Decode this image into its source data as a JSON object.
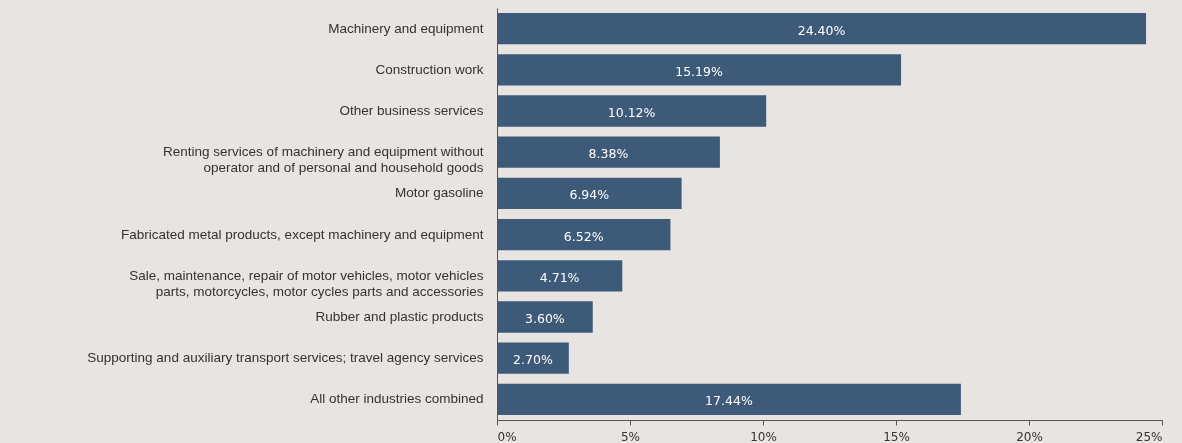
{
  "chart_data": {
    "type": "bar",
    "orientation": "horizontal",
    "categories": [
      "Machinery and equipment",
      "Construction work",
      "Other business services",
      "Renting services of machinery and equipment without\noperator and of personal and household goods",
      "Motor gasoline",
      "Fabricated metal products, except machinery and equipment",
      "Sale, maintenance, repair of motor vehicles, motor vehicles\nparts, motorcycles, motor cycles parts and accessories",
      "Rubber and plastic products",
      "Supporting and auxiliary transport services; travel agency services",
      "All other industries combined"
    ],
    "values": [
      24.4,
      15.19,
      10.12,
      8.38,
      6.94,
      6.52,
      4.71,
      3.6,
      2.7,
      17.44
    ],
    "value_labels": [
      "24.40%",
      "15.19%",
      "10.12%",
      "8.38%",
      "6.94%",
      "6.52%",
      "4.71%",
      "3.60%",
      "2.70%",
      "17.44%"
    ],
    "color": "#3d5b78",
    "xlim": [
      0,
      25
    ],
    "xticks": [
      {
        "value": 0,
        "label": "0%"
      },
      {
        "value": 5,
        "label": "5%"
      },
      {
        "value": 10,
        "label": "10%"
      },
      {
        "value": 15,
        "label": "15%"
      },
      {
        "value": 20,
        "label": "20%"
      },
      {
        "value": 25,
        "label": "25%"
      }
    ],
    "grid": false
  }
}
